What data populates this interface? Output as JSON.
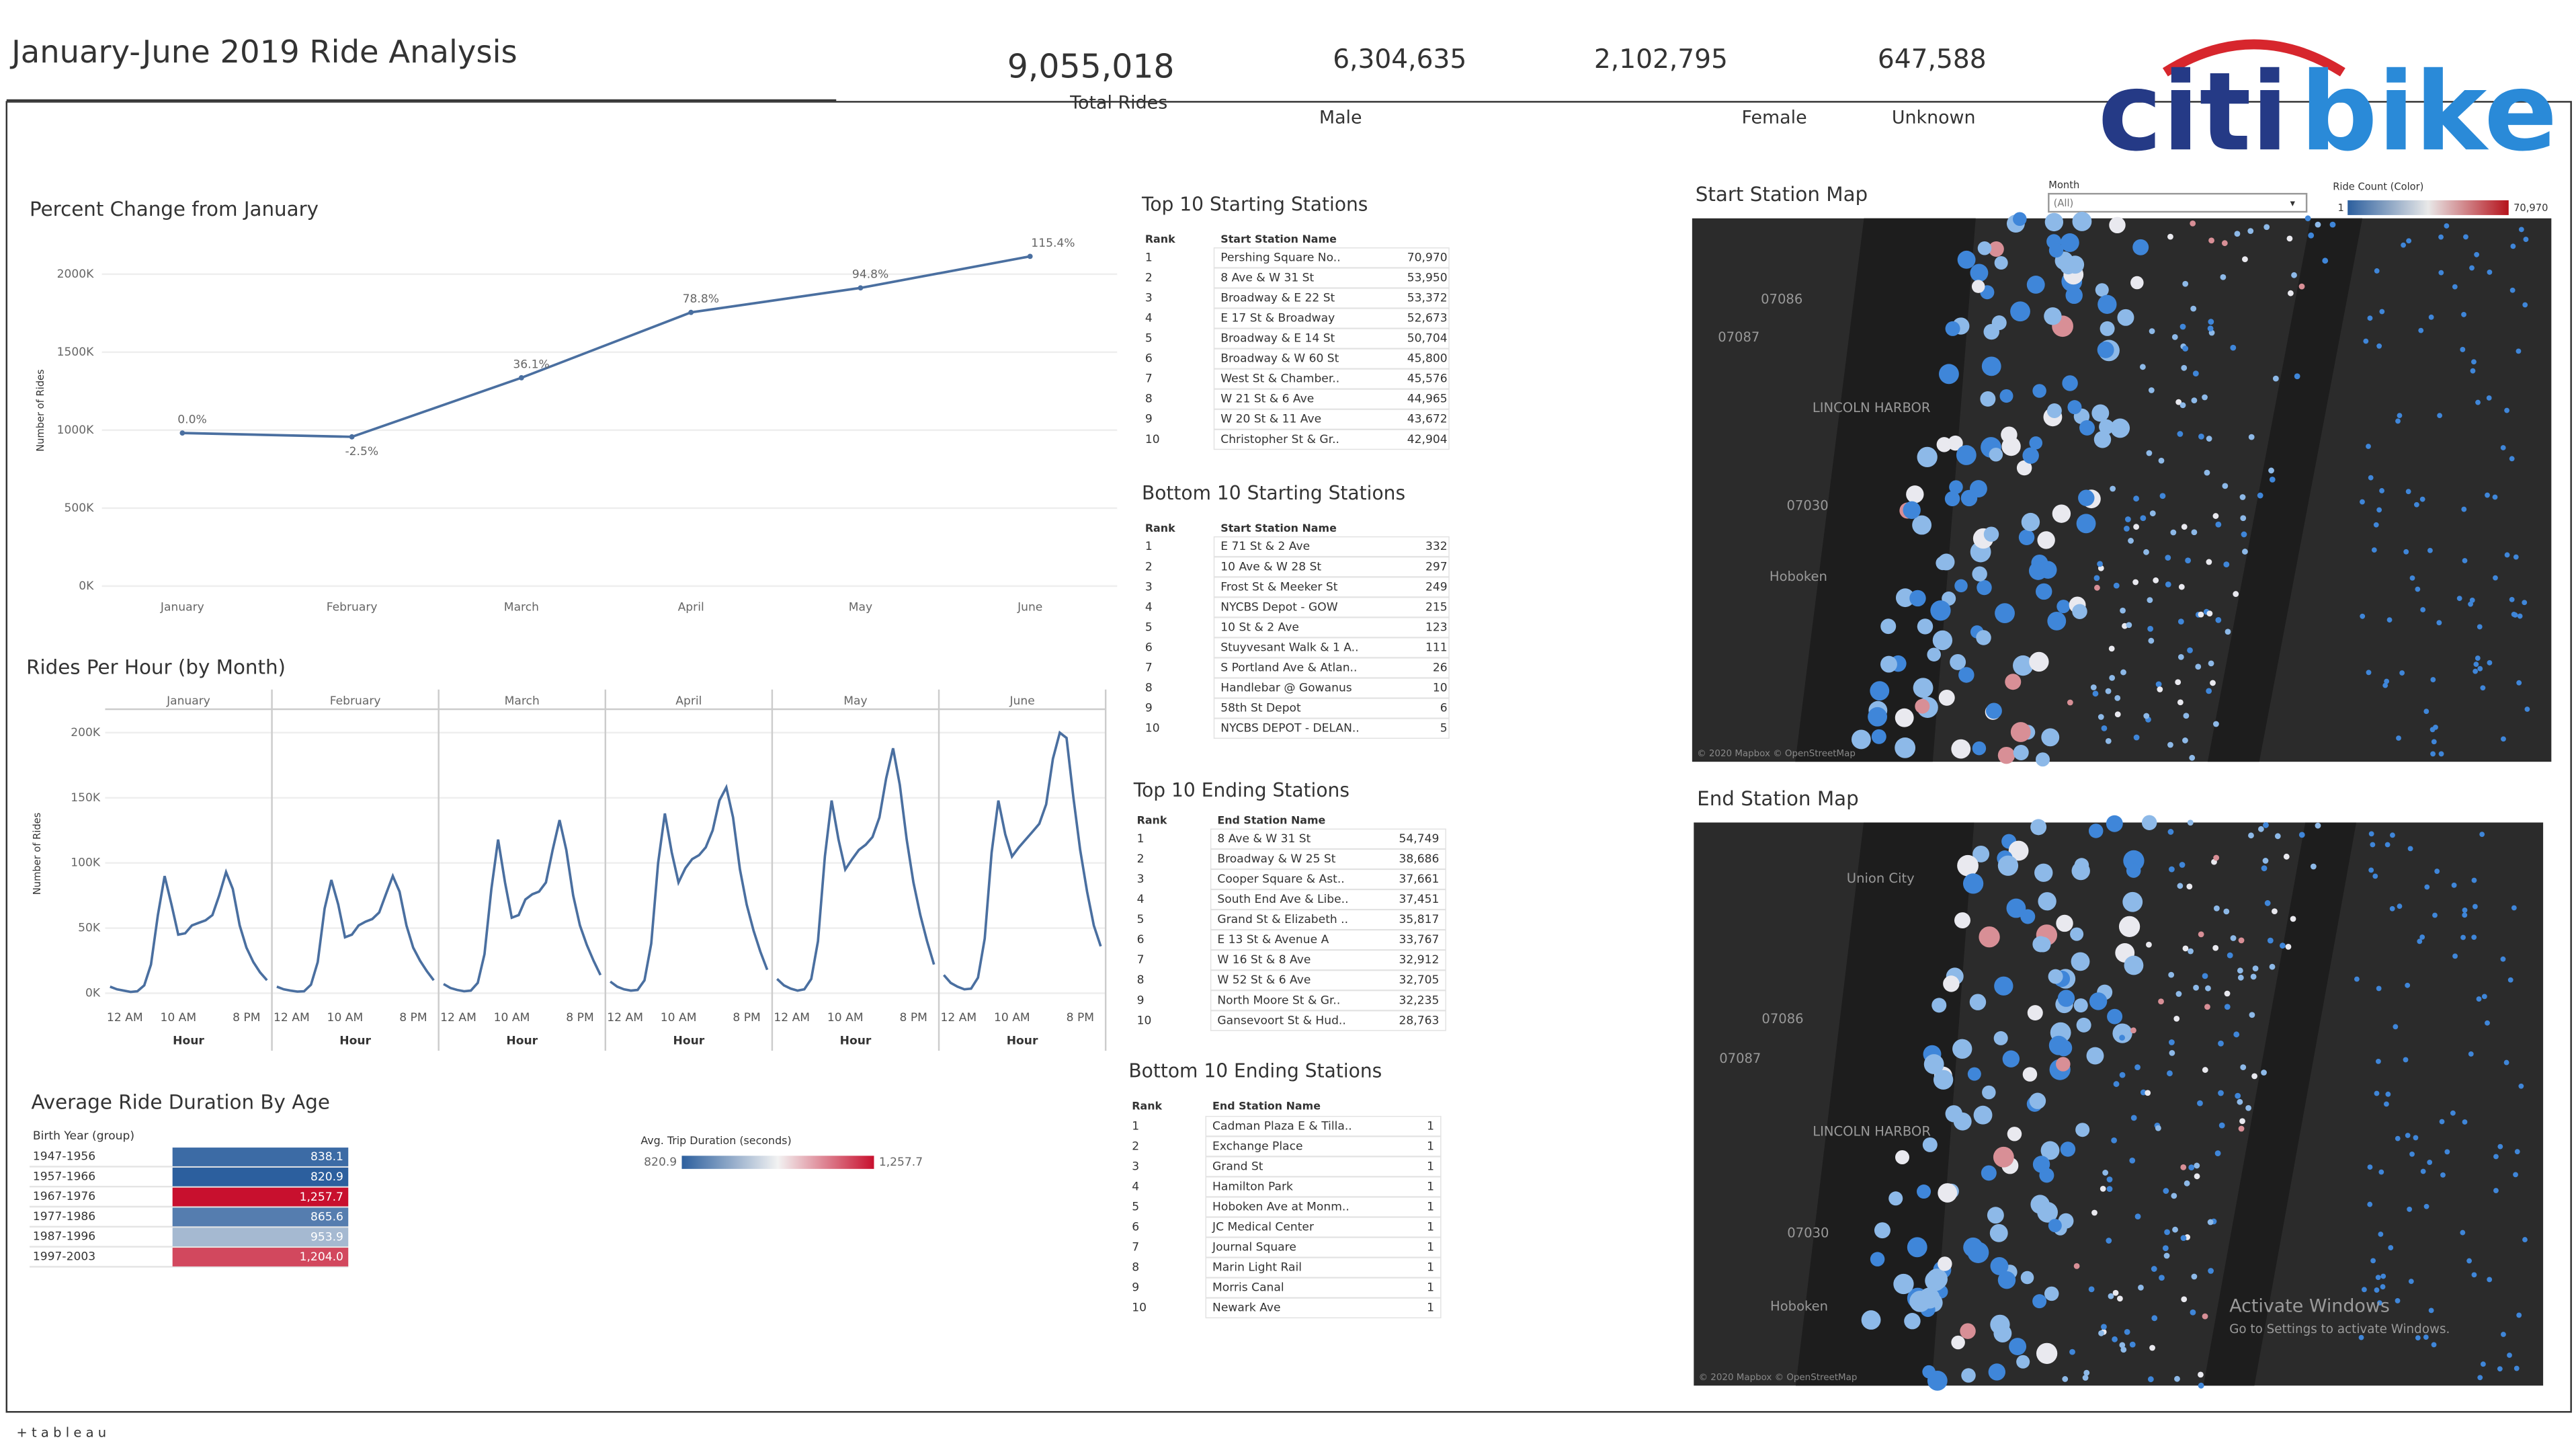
{
  "header": {
    "title": "January-June 2019 Ride Analysis",
    "logo": {
      "part1": "citi",
      "part2": "bike"
    }
  },
  "kpis": [
    {
      "value": "9,055,018",
      "label": "Total Rides"
    },
    {
      "value": "6,304,635",
      "label": "Male"
    },
    {
      "value": "2,102,795",
      "label": "Female"
    },
    {
      "value": "647,588",
      "label": "Unknown"
    }
  ],
  "chart_data": [
    {
      "type": "line",
      "title": "Percent Change from January",
      "y_label": "Number of Rides",
      "categories": [
        "January",
        "February",
        "March",
        "April",
        "May",
        "June"
      ],
      "values": [
        981500,
        957000,
        1335800,
        1754900,
        1911960,
        2114150
      ],
      "annotations": [
        "0.0%",
        "-2.5%",
        "36.1%",
        "78.8%",
        "94.8%",
        "115.4%"
      ],
      "color": "#4a6fa0",
      "ylim": [
        0,
        2200000
      ],
      "yticks": [
        {
          "value": 0,
          "label": "0K"
        },
        {
          "value": 500000,
          "label": "500K"
        },
        {
          "value": 1000000,
          "label": "1000K"
        },
        {
          "value": 1500000,
          "label": "1500K"
        },
        {
          "value": 2000000,
          "label": "2000K"
        }
      ],
      "grid": true
    },
    {
      "type": "small_multiples_line",
      "title": "Rides Per Hour (by Month)",
      "y_label": "Number of Rides",
      "x_label": "Hour",
      "color": "#4a6fa0",
      "categories": [
        "12 AM",
        null,
        null,
        null,
        null,
        null,
        null,
        null,
        null,
        null,
        "10 AM",
        null,
        null,
        null,
        null,
        null,
        null,
        null,
        null,
        null,
        "8 PM",
        null,
        null,
        null
      ],
      "panels": [
        {
          "title": "January",
          "values": [
            5000,
            3000,
            2000,
            1000,
            1500,
            6000,
            22000,
            60000,
            90000,
            68000,
            45000,
            46000,
            52000,
            54000,
            56000,
            60000,
            75000,
            93000,
            80000,
            52000,
            35000,
            24000,
            16000,
            10000
          ]
        },
        {
          "title": "February",
          "values": [
            5000,
            3000,
            2000,
            1200,
            1500,
            6500,
            24000,
            65000,
            87000,
            68000,
            43000,
            45000,
            52000,
            55000,
            57000,
            62000,
            76000,
            90000,
            78000,
            52000,
            35000,
            25000,
            17000,
            10000
          ]
        },
        {
          "title": "March",
          "values": [
            7000,
            4000,
            2500,
            1500,
            2000,
            8000,
            30000,
            80000,
            118000,
            85000,
            58000,
            60000,
            72000,
            76000,
            78000,
            85000,
            110000,
            133000,
            110000,
            75000,
            52000,
            37000,
            25000,
            14000
          ]
        },
        {
          "title": "April",
          "values": [
            9000,
            5000,
            3000,
            2000,
            2500,
            10000,
            38000,
            100000,
            138000,
            108000,
            85000,
            96000,
            103000,
            106000,
            112000,
            125000,
            148000,
            158000,
            135000,
            95000,
            68000,
            48000,
            32000,
            18000
          ]
        },
        {
          "title": "May",
          "values": [
            11000,
            6000,
            3500,
            2000,
            3000,
            11000,
            40000,
            105000,
            148000,
            118000,
            95000,
            103000,
            110000,
            114000,
            120000,
            135000,
            165000,
            188000,
            160000,
            118000,
            85000,
            60000,
            40000,
            22000
          ]
        },
        {
          "title": "June",
          "values": [
            14000,
            8000,
            5000,
            3000,
            3500,
            12000,
            42000,
            108000,
            148000,
            122000,
            105000,
            112000,
            118000,
            124000,
            130000,
            145000,
            180000,
            200000,
            196000,
            150000,
            110000,
            78000,
            52000,
            36000
          ]
        }
      ],
      "ylim": [
        0,
        218000
      ],
      "yticks": [
        {
          "value": 0,
          "label": "0K"
        },
        {
          "value": 50000,
          "label": "50K"
        },
        {
          "value": 100000,
          "label": "100K"
        },
        {
          "value": 150000,
          "label": "150K"
        },
        {
          "value": 200000,
          "label": "200K"
        }
      ],
      "grid": true
    },
    {
      "type": "highlight_table",
      "title": "Average Ride Duration By Age",
      "column_header": "Birth Year (group)",
      "categories": [
        "1947-1956",
        "1957-1966",
        "1967-1976",
        "1977-1986",
        "1987-1996",
        "1997-2003"
      ],
      "values": [
        838.1,
        820.9,
        1257.7,
        865.6,
        953.9,
        1204.0
      ],
      "value_labels": [
        "838.1",
        "820.9",
        "1,257.7",
        "865.6",
        "953.9",
        "1,204.0"
      ],
      "legend_title": "Avg. Trip Duration (seconds)",
      "legend_ticks": [
        {
          "value": 820.9,
          "label": "820.9"
        },
        {
          "value": 1257.7,
          "label": "1,257.7"
        }
      ],
      "colors": [
        "#2c5f9e",
        "#f2f2f2",
        "#c8102e"
      ]
    }
  ],
  "tables": [
    {
      "title": "Top 10 Starting Stations",
      "columns": [
        "Rank",
        "Start Station Name"
      ],
      "rows": [
        [
          "1",
          "Pershing Square No..",
          "70,970"
        ],
        [
          "2",
          "8 Ave & W 31 St",
          "53,950"
        ],
        [
          "3",
          "Broadway & E 22 St",
          "53,372"
        ],
        [
          "4",
          "E 17 St & Broadway",
          "52,673"
        ],
        [
          "5",
          "Broadway & E 14 St",
          "50,704"
        ],
        [
          "6",
          "Broadway & W 60 St",
          "45,800"
        ],
        [
          "7",
          "West St & Chamber..",
          "45,576"
        ],
        [
          "8",
          "W 21 St & 6 Ave",
          "44,965"
        ],
        [
          "9",
          "W 20 St & 11 Ave",
          "43,672"
        ],
        [
          "10",
          "Christopher St & Gr..",
          "42,904"
        ]
      ]
    },
    {
      "title": "Bottom 10 Starting Stations",
      "columns": [
        "Rank",
        "Start Station Name"
      ],
      "rows": [
        [
          "1",
          "E 71 St & 2 Ave",
          "332"
        ],
        [
          "2",
          "10 Ave & W 28 St",
          "297"
        ],
        [
          "3",
          "Frost St & Meeker St",
          "249"
        ],
        [
          "4",
          "NYCBS Depot - GOW",
          "215"
        ],
        [
          "5",
          "10 St & 2 Ave",
          "123"
        ],
        [
          "6",
          "Stuyvesant Walk & 1 A..",
          "111"
        ],
        [
          "7",
          "S Portland Ave & Atlan..",
          "26"
        ],
        [
          "8",
          "Handlebar @ Gowanus",
          "10"
        ],
        [
          "9",
          "58th St Depot",
          "6"
        ],
        [
          "10",
          "NYCBS DEPOT - DELAN..",
          "5"
        ]
      ]
    },
    {
      "title": "Top 10 Ending Stations",
      "columns": [
        "Rank",
        "End Station Name"
      ],
      "rows": [
        [
          "1",
          "8 Ave & W 31 St",
          "54,749"
        ],
        [
          "2",
          "Broadway & W 25 St",
          "38,686"
        ],
        [
          "3",
          "Cooper Square & Ast..",
          "37,661"
        ],
        [
          "4",
          "South End Ave & Libe..",
          "37,451"
        ],
        [
          "5",
          "Grand St & Elizabeth ..",
          "35,817"
        ],
        [
          "6",
          "E 13 St & Avenue A",
          "33,767"
        ],
        [
          "7",
          "W 16 St & 8 Ave",
          "32,912"
        ],
        [
          "8",
          "W 52 St & 6 Ave",
          "32,705"
        ],
        [
          "9",
          "North Moore St & Gr..",
          "32,235"
        ],
        [
          "10",
          "Gansevoort St & Hud..",
          "28,763"
        ]
      ]
    },
    {
      "title": "Bottom 10 Ending Stations",
      "columns": [
        "Rank",
        "End Station Name"
      ],
      "rows": [
        [
          "1",
          "Cadman Plaza E & Tilla..",
          "1"
        ],
        [
          "2",
          "Exchange Place",
          "1"
        ],
        [
          "3",
          "Grand St",
          "1"
        ],
        [
          "4",
          "Hamilton Park",
          "1"
        ],
        [
          "5",
          "Hoboken Ave at Monm..",
          "1"
        ],
        [
          "6",
          "JC Medical Center",
          "1"
        ],
        [
          "7",
          "Journal Square",
          "1"
        ],
        [
          "8",
          "Marin Light Rail",
          "1"
        ],
        [
          "9",
          "Morris Canal",
          "1"
        ],
        [
          "10",
          "Newark Ave",
          "1"
        ]
      ]
    }
  ],
  "maps": [
    {
      "title": "Start Station Map",
      "labels": [
        "07086",
        "07087",
        "LINCOLN HARBOR",
        "07030",
        "Hoboken"
      ],
      "credit": "© 2020 Mapbox © OpenStreetMap"
    },
    {
      "title": "End Station Map",
      "labels": [
        "Union City",
        "07086",
        "07087",
        "LINCOLN HARBOR",
        "07030",
        "Hoboken"
      ],
      "credit": "© 2020 Mapbox © OpenStreetMap"
    }
  ],
  "map_filter": {
    "label": "Month",
    "value": "(All)"
  },
  "map_legend": {
    "title": "Ride Count (Color)",
    "min": "1",
    "max": "70,970"
  },
  "watermark": {
    "title": "Activate Windows",
    "text": "Go to Settings to activate Windows."
  },
  "footer": {
    "brand": "+ t a b l e a u"
  }
}
